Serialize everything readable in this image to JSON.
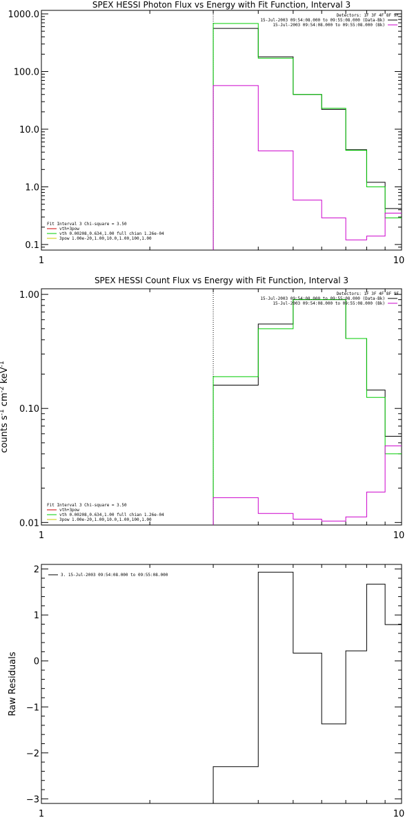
{
  "colors": {
    "black": "#000000",
    "green": "#00cc00",
    "magenta": "#cc00cc",
    "red": "#cc0000",
    "yellow": "#cccc00"
  },
  "chart_data": [
    {
      "type": "line",
      "title": "SPEX HESSI Photon Flux vs Energy with Fit Function, Interval 3",
      "xscale": "log",
      "yscale": "log",
      "xlim": [
        1,
        10
      ],
      "ylim": [
        0.08,
        1150
      ],
      "xticks": [
        1,
        10
      ],
      "xtick_labels": [
        "1",
        "10"
      ],
      "yticks": [
        0.1,
        1,
        10,
        100,
        1000
      ],
      "ytick_labels": [
        "0.1",
        "1.0",
        "10.0",
        "100.0",
        "1000.0"
      ],
      "ylabel": "",
      "info_lines": [
        "Detectors: 1F 3F 4F 8F 9F",
        "15-Jul-2003 09:54:08.000 to 09:55:08.000 (Data-Bk)",
        "15-Jul-2003 09:54:08.000 to 09:55:08.000 (Bk)"
      ],
      "fit_text": [
        "Fit Interval 3   Chi-square = 3.50",
        "vth+3pow",
        "vth 0.00208,0.634,1.00  full chian 1.26e-04",
        "3pow 1.00e-20,1.00,10.0,1.00,100,1.00"
      ],
      "edges": [
        3,
        4,
        5,
        6,
        7,
        8,
        9,
        10
      ],
      "vline": 3,
      "series": [
        {
          "name": "(Data-Bk)",
          "color": "black",
          "values": [
            560,
            180,
            40,
            22,
            4.4,
            1.2,
            0.42
          ]
        },
        {
          "name": "vth+3pow",
          "color": "green",
          "values": [
            680,
            170,
            40,
            23,
            4.3,
            1.0,
            0.29
          ]
        },
        {
          "name": "(Bk)",
          "color": "magenta",
          "values": [
            57,
            4.2,
            0.59,
            0.29,
            0.12,
            0.14,
            0.35
          ]
        }
      ]
    },
    {
      "type": "line",
      "title": "SPEX HESSI Count Flux vs Energy with Fit Function, Interval 3",
      "xscale": "log",
      "yscale": "log",
      "xlim": [
        1,
        10
      ],
      "ylim": [
        0.0095,
        1.12
      ],
      "xticks": [
        1,
        10
      ],
      "xtick_labels": [
        "1",
        "10"
      ],
      "yticks": [
        0.01,
        0.1,
        1
      ],
      "ytick_labels": [
        "0.01",
        "0.10",
        "1.00"
      ],
      "ylabel": "counts s^-1 cm^-2 keV^-1",
      "ylabel_parts": [
        "counts s",
        "-1",
        " cm",
        "-2",
        " keV",
        "-1"
      ],
      "info_lines": [
        "Detectors: 1F 3F 4F 8F 9F",
        "15-Jul-2003 09:54:08.000 to 09:55:08.000 (Data-Bk)",
        "15-Jul-2003 09:54:08.000 to 09:55:08.000 (Bk)"
      ],
      "fit_text": [
        "Fit Interval 3   Chi-square = 3.50",
        "vth+3pow",
        "vth 0.00208,0.634,1.00  full chian 1.26e-04",
        "3pow 1.00e-20,1.00,10.0,1.00,100,1.00"
      ],
      "edges": [
        3,
        4,
        5,
        6,
        7,
        8,
        9,
        10
      ],
      "vline": 3,
      "series": [
        {
          "name": "(Data-Bk)",
          "color": "black",
          "values": [
            0.16,
            0.55,
            0.9,
            0.9,
            0.41,
            0.145,
            0.057
          ]
        },
        {
          "name": "vth+3pow",
          "color": "green",
          "values": [
            0.19,
            0.5,
            0.9,
            0.9,
            0.41,
            0.125,
            0.04
          ]
        },
        {
          "name": "(Bk)",
          "color": "magenta",
          "values": [
            0.0165,
            0.012,
            0.0107,
            0.0103,
            0.0112,
            0.0185,
            0.047
          ]
        }
      ]
    },
    {
      "type": "line",
      "title": "",
      "xscale": "log",
      "yscale": "linear",
      "xlim": [
        1,
        10
      ],
      "ylim": [
        -3.1,
        2.1
      ],
      "xticks": [
        1,
        10
      ],
      "xtick_labels": [
        "1",
        "10"
      ],
      "yticks": [
        -3,
        -2,
        -1,
        0,
        1,
        2
      ],
      "ytick_labels": [
        "−3",
        "−2",
        "−1",
        "0",
        "1",
        "2"
      ],
      "ylabel": "Raw Residuals",
      "legend": "3. 15-Jul-2003 09:54:08.000 to 09:55:08.000",
      "edges": [
        3,
        4,
        5,
        6,
        7,
        8,
        9,
        10
      ],
      "series": [
        {
          "name": "3. 15-Jul-2003 09:54:08.000 to 09:55:08.000",
          "color": "black",
          "values": [
            -2.3,
            1.93,
            0.17,
            -1.37,
            0.22,
            1.67,
            0.79
          ]
        }
      ]
    }
  ]
}
